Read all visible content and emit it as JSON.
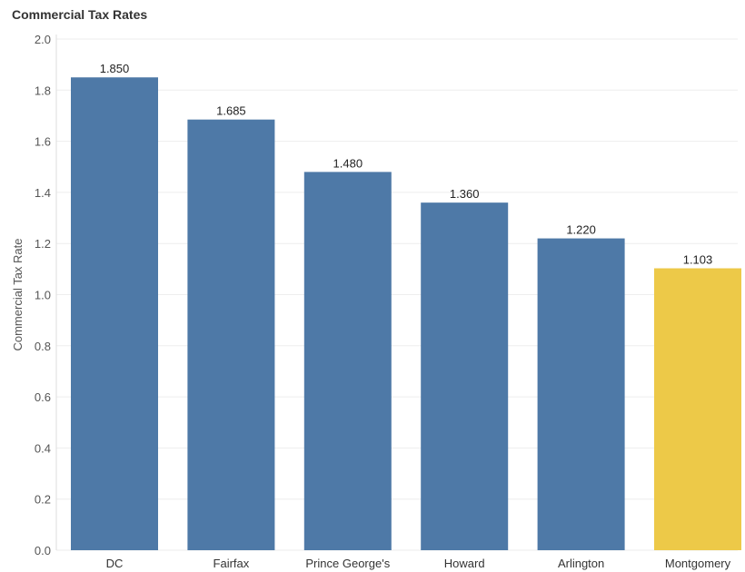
{
  "chart_data": {
    "type": "bar",
    "title": "Commercial Tax Rates",
    "xlabel": "",
    "ylabel": "Commercial Tax Rate",
    "categories": [
      "DC",
      "Fairfax",
      "Prince George's",
      "Howard",
      "Arlington",
      "Montgomery"
    ],
    "values": [
      1.85,
      1.685,
      1.48,
      1.36,
      1.22,
      1.103
    ],
    "value_labels": [
      "1.850",
      "1.685",
      "1.480",
      "1.360",
      "1.220",
      "1.103"
    ],
    "ylim": [
      0,
      2.0
    ],
    "yticks": [
      0.0,
      0.2,
      0.4,
      0.6,
      0.8,
      1.0,
      1.2,
      1.4,
      1.6,
      1.8,
      2.0
    ],
    "ytick_labels": [
      "0.0",
      "0.2",
      "0.4",
      "0.6",
      "0.8",
      "1.0",
      "1.2",
      "1.4",
      "1.6",
      "1.8",
      "2.0"
    ],
    "grid": true,
    "legend": "none",
    "colors": {
      "default": "#4e79a7",
      "highlight": "#edc948"
    },
    "highlight_category": "Montgomery"
  }
}
